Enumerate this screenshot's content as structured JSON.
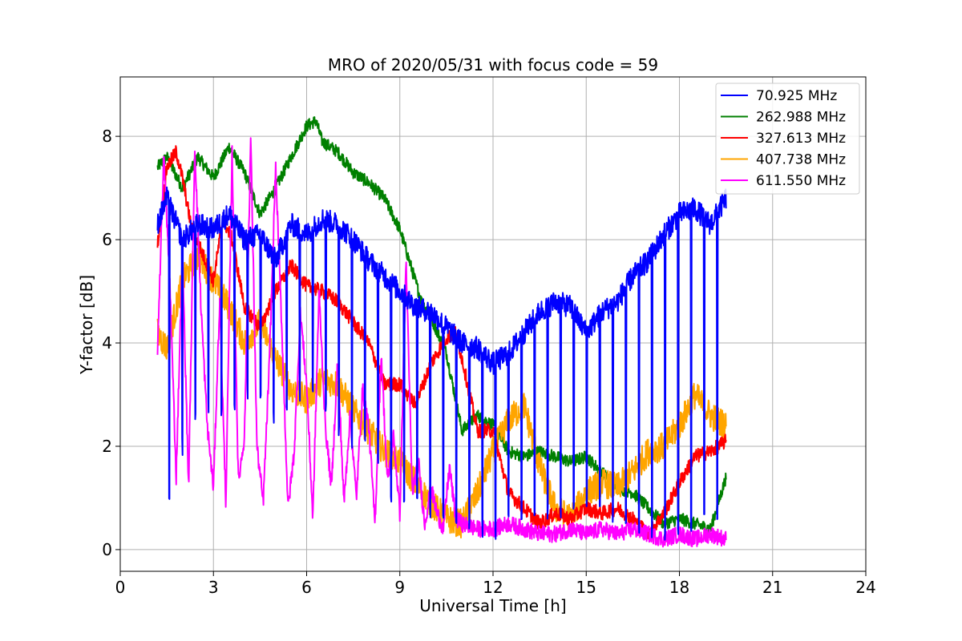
{
  "chart_data": {
    "type": "line",
    "title": "MRO of 2020/05/31 with focus code = 59",
    "xlabel": "Universal Time [h]",
    "ylabel": "Y-factor [dB]",
    "xlim": [
      0,
      24
    ],
    "ylim": [
      -0.42,
      9.15
    ],
    "xticks": [
      0,
      3,
      6,
      9,
      12,
      15,
      18,
      21,
      24
    ],
    "yticks": [
      0,
      2,
      4,
      6,
      8
    ],
    "xtick_labels": [
      "0",
      "3",
      "6",
      "9",
      "12",
      "15",
      "18",
      "21",
      "24"
    ],
    "ytick_labels": [
      "0",
      "2",
      "4",
      "6",
      "8"
    ],
    "grid": true,
    "legend_position": "top-right",
    "series": [
      {
        "name": "  70.925 MHz",
        "color": "#0000ff",
        "x": [
          1.2,
          1.5,
          2.0,
          2.5,
          3.0,
          3.5,
          4.0,
          4.5,
          5.0,
          5.5,
          6.0,
          6.5,
          7.0,
          7.5,
          8.0,
          8.5,
          9.0,
          9.5,
          10.0,
          10.5,
          11.0,
          11.5,
          12.0,
          12.5,
          13.0,
          13.5,
          14.0,
          14.5,
          15.0,
          15.5,
          16.0,
          16.5,
          17.0,
          17.5,
          18.0,
          18.5,
          19.0,
          19.5
        ],
        "y": [
          6.3,
          6.8,
          6.0,
          6.3,
          6.2,
          6.5,
          6.0,
          6.1,
          5.6,
          6.3,
          6.1,
          6.4,
          6.3,
          6.0,
          5.6,
          5.3,
          5.0,
          4.7,
          4.6,
          4.3,
          4.0,
          3.9,
          3.6,
          3.8,
          4.2,
          4.6,
          4.8,
          4.7,
          4.2,
          4.6,
          4.8,
          5.3,
          5.6,
          6.1,
          6.5,
          6.6,
          6.3,
          6.8
        ],
        "dips": [
          0.15,
          0.6,
          1.8,
          2.5,
          2.6,
          2.5,
          2.8,
          2.8,
          2.3,
          2.7,
          2.9,
          2.7,
          2.2,
          1.8,
          2.1,
          1.0,
          0.8,
          0.7,
          0.5,
          0.4,
          0.3,
          0.3,
          0.1,
          0.5,
          0.5,
          0.4,
          0.5,
          0.6,
          0.7,
          0.5,
          0.4,
          0.3,
          0.2,
          0.1,
          0.1,
          0.3,
          0.3,
          0.4
        ],
        "spike_period_h": 0.42,
        "noise": 0.22
      },
      {
        "name": "262.988 MHz",
        "color": "#008000",
        "x": [
          1.2,
          1.5,
          2.0,
          2.5,
          3.0,
          3.5,
          4.0,
          4.5,
          5.0,
          5.5,
          6.0,
          6.3,
          6.5,
          7.0,
          7.5,
          8.0,
          8.5,
          9.0,
          9.3,
          9.7,
          10.0,
          10.5,
          11.0,
          11.5,
          12.0,
          12.5,
          13.0,
          13.5,
          14.0,
          14.5,
          15.0,
          15.5,
          16.0,
          16.5,
          17.0,
          17.5,
          18.0,
          18.5,
          19.0,
          19.5
        ],
        "y": [
          7.4,
          7.6,
          7.0,
          7.6,
          7.2,
          7.8,
          7.3,
          6.5,
          7.0,
          7.6,
          8.2,
          8.3,
          7.9,
          7.7,
          7.3,
          7.1,
          6.8,
          6.2,
          5.6,
          4.8,
          4.5,
          3.8,
          2.3,
          2.6,
          2.4,
          1.9,
          1.8,
          1.9,
          1.8,
          1.7,
          1.8,
          1.5,
          1.2,
          1.1,
          0.8,
          0.5,
          0.6,
          0.5,
          0.4,
          1.4
        ],
        "noise": 0.12
      },
      {
        "name": "327.613 MHz",
        "color": "#ff0000",
        "x": [
          1.2,
          1.5,
          1.8,
          2.0,
          2.3,
          2.6,
          3.0,
          3.3,
          3.6,
          4.0,
          4.5,
          5.0,
          5.5,
          6.0,
          6.5,
          7.0,
          7.5,
          8.0,
          8.5,
          9.0,
          9.5,
          10.0,
          10.5,
          10.8,
          11.0,
          11.5,
          12.0,
          12.5,
          13.0,
          13.5,
          14.0,
          14.5,
          15.0,
          15.5,
          16.0,
          16.5,
          17.0,
          17.5,
          18.0,
          18.5,
          19.0,
          19.5
        ],
        "y": [
          5.9,
          7.4,
          7.7,
          7.2,
          6.2,
          5.8,
          5.2,
          6.4,
          6.0,
          4.7,
          4.3,
          5.0,
          5.5,
          5.1,
          5.0,
          4.8,
          4.4,
          4.0,
          3.2,
          3.2,
          2.8,
          3.6,
          4.1,
          4.2,
          3.7,
          2.3,
          2.3,
          1.1,
          0.8,
          0.5,
          0.7,
          0.6,
          0.8,
          0.7,
          0.8,
          0.6,
          0.3,
          0.7,
          1.3,
          1.8,
          1.9,
          2.1
        ],
        "noise": 0.14
      },
      {
        "name": "407.738 MHz",
        "color": "#ffa500",
        "x": [
          1.2,
          1.5,
          2.0,
          2.5,
          3.0,
          3.5,
          4.0,
          4.5,
          5.0,
          5.5,
          6.0,
          6.5,
          7.0,
          7.5,
          8.0,
          8.5,
          9.0,
          9.5,
          10.0,
          10.5,
          11.0,
          11.5,
          12.0,
          12.5,
          13.0,
          13.5,
          14.0,
          14.5,
          15.0,
          15.5,
          16.0,
          16.5,
          17.0,
          17.5,
          18.0,
          18.5,
          19.0,
          19.5
        ],
        "y": [
          4.2,
          3.9,
          5.2,
          5.7,
          5.2,
          4.7,
          4.0,
          4.4,
          3.7,
          3.1,
          2.9,
          3.3,
          3.2,
          2.7,
          2.3,
          1.9,
          1.7,
          1.3,
          0.9,
          0.6,
          0.5,
          1.1,
          1.9,
          2.5,
          2.8,
          1.6,
          0.8,
          0.6,
          1.1,
          1.3,
          1.2,
          1.5,
          1.9,
          2.0,
          2.4,
          3.0,
          2.6,
          2.4
        ],
        "noise": 0.28
      },
      {
        "name": "611.550 MHz",
        "color": "#ff00ff",
        "x": [
          1.2,
          1.4,
          1.6,
          1.8,
          2.0,
          2.2,
          2.4,
          2.6,
          2.8,
          3.0,
          3.2,
          3.4,
          3.6,
          3.8,
          4.0,
          4.2,
          4.4,
          4.6,
          4.8,
          5.0,
          5.2,
          5.4,
          5.6,
          5.8,
          6.0,
          6.2,
          6.4,
          6.6,
          6.8,
          7.0,
          7.2,
          7.4,
          7.6,
          7.8,
          8.0,
          8.2,
          8.4,
          8.6,
          8.8,
          9.0,
          9.2,
          9.4,
          9.6,
          9.8,
          10.0,
          10.2,
          10.4,
          10.6,
          10.8,
          11.0,
          11.5,
          12.0,
          12.5,
          13.0,
          13.5,
          14.0,
          14.5,
          15.0,
          15.5,
          16.0,
          16.5,
          17.0,
          17.5,
          18.0,
          18.5,
          19.0,
          19.5
        ],
        "y": [
          3.9,
          7.6,
          5.1,
          1.4,
          5.8,
          1.2,
          7.8,
          4.7,
          2.4,
          1.2,
          4.8,
          0.9,
          7.7,
          1.3,
          2.2,
          8.0,
          2.0,
          0.9,
          3.6,
          7.4,
          4.3,
          0.8,
          1.9,
          4.6,
          3.2,
          0.6,
          5.0,
          2.4,
          1.2,
          3.7,
          0.9,
          2.6,
          1.0,
          3.1,
          2.4,
          0.5,
          3.8,
          1.3,
          2.2,
          0.7,
          5.6,
          1.1,
          1.7,
          0.5,
          1.2,
          0.7,
          0.4,
          1.6,
          0.6,
          0.5,
          0.4,
          0.4,
          0.5,
          0.4,
          0.3,
          0.3,
          0.4,
          0.3,
          0.4,
          0.3,
          0.4,
          0.3,
          0.2,
          0.3,
          0.2,
          0.3,
          0.2
        ],
        "noise": 0.16
      }
    ]
  }
}
